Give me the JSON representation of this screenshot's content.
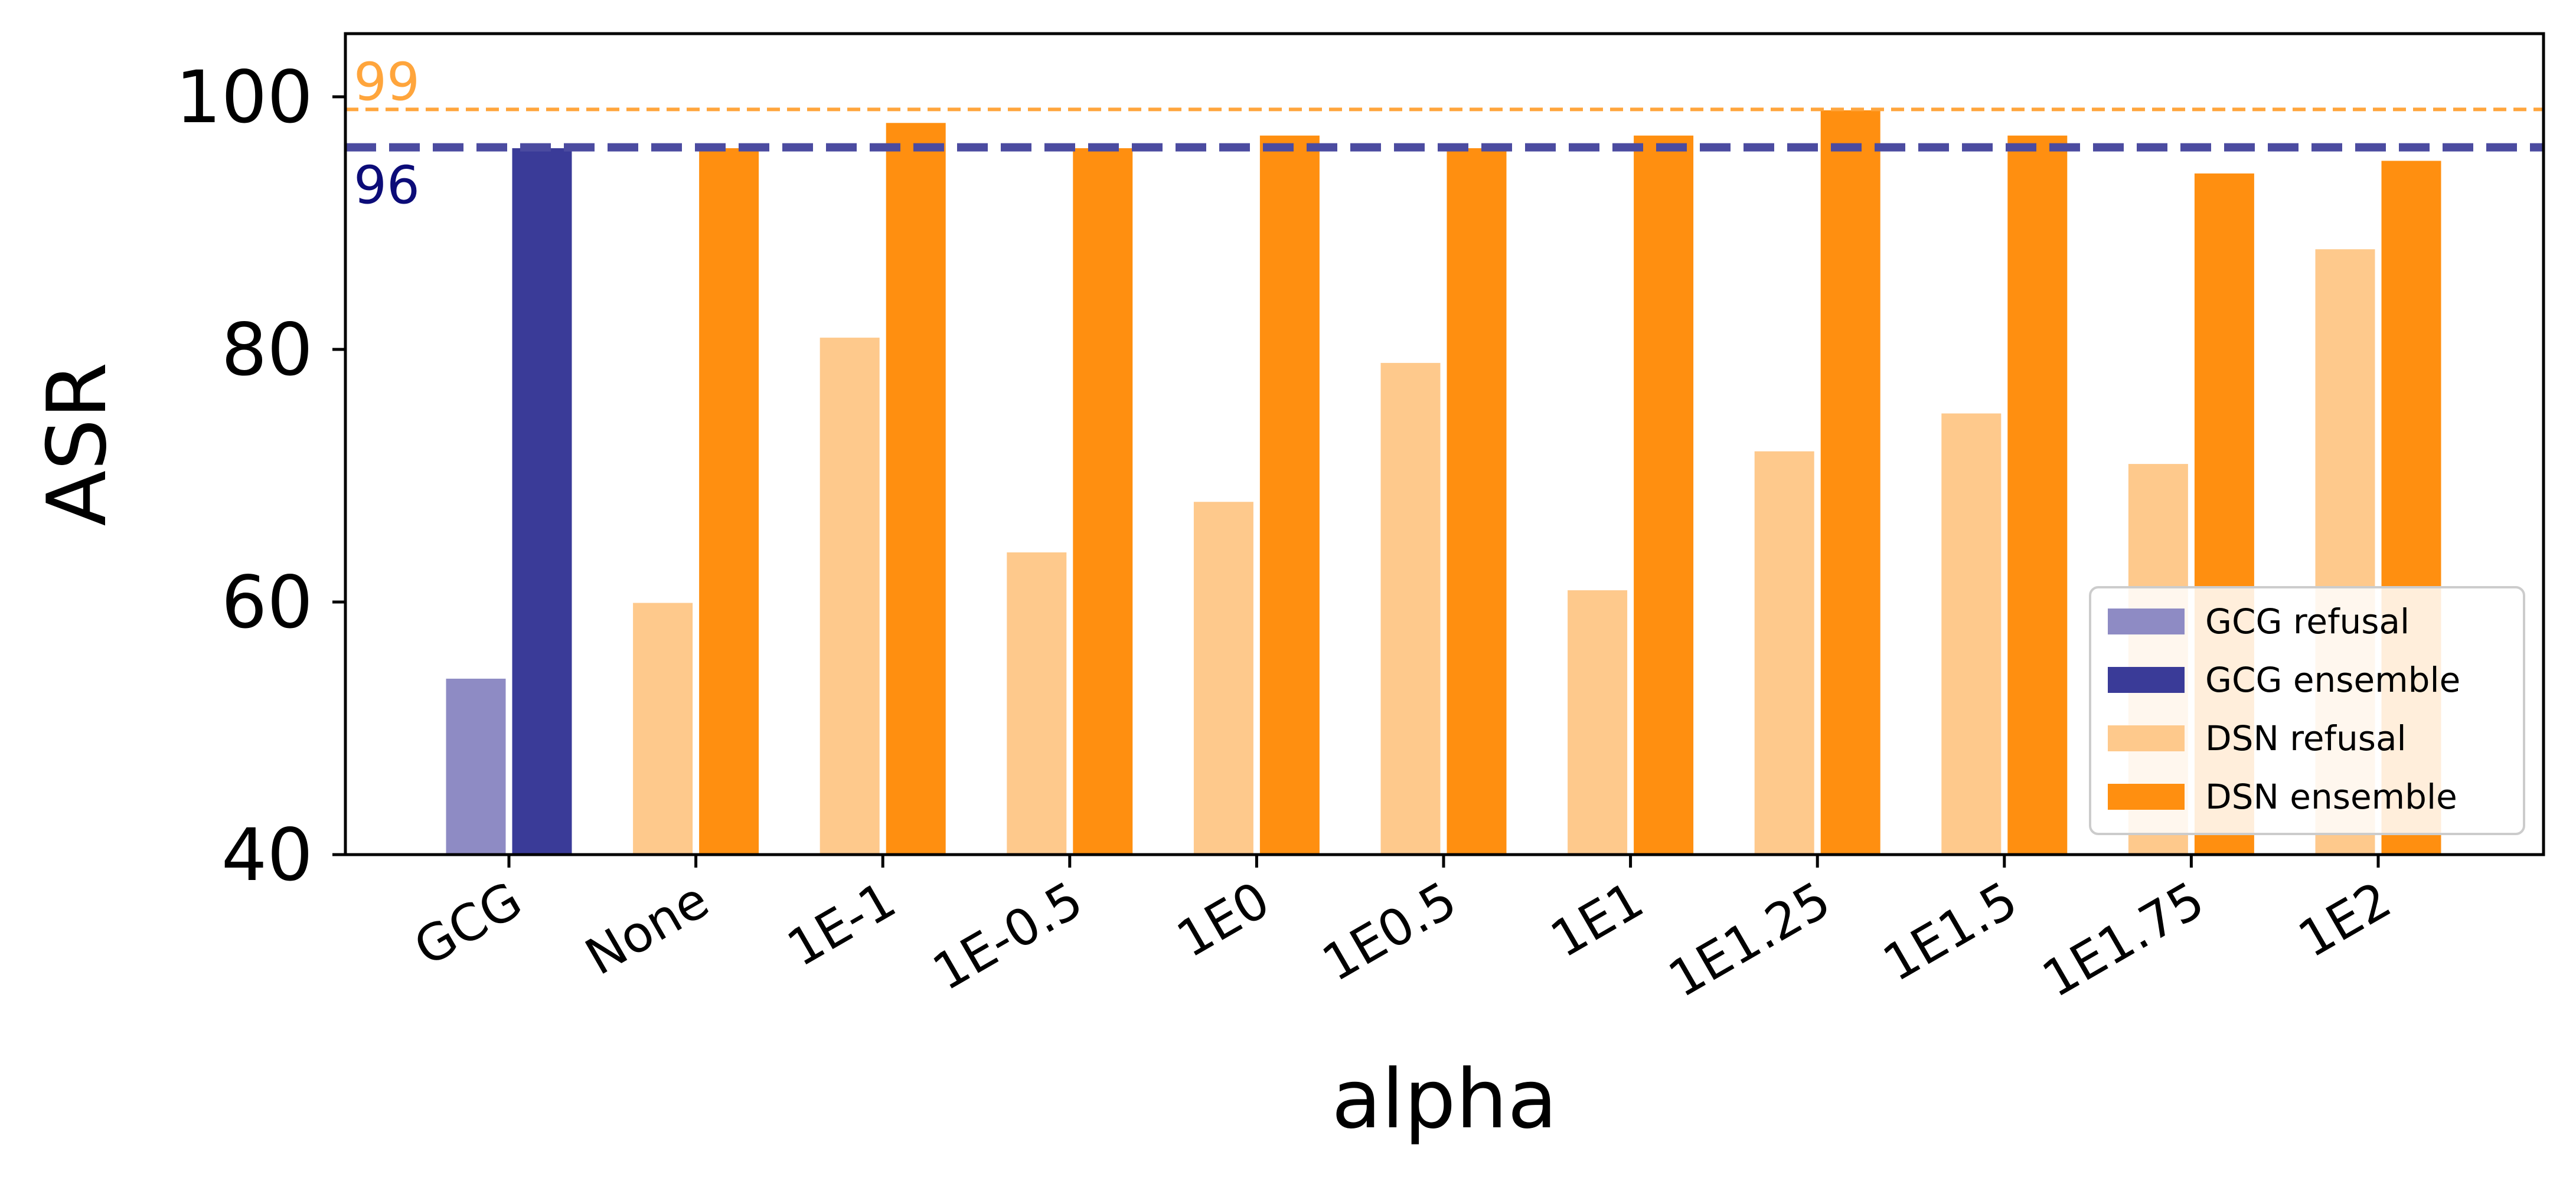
{
  "chart_data": {
    "type": "bar",
    "title": "",
    "xlabel": "alpha",
    "ylabel": "ASR",
    "ylim": [
      40,
      105
    ],
    "yticks": [
      40,
      60,
      80,
      100
    ],
    "grid": false,
    "legend_position": "bottom-right",
    "categories": [
      "GCG",
      "None",
      "1E-1",
      "1E-0.5",
      "1E0",
      "1E0.5",
      "1E1",
      "1E1.25",
      "1E1.5",
      "1E1.75",
      "1E2"
    ],
    "series": [
      {
        "name": "GCG refusal",
        "color": "#8e8bc4",
        "values": [
          54,
          null,
          null,
          null,
          null,
          null,
          null,
          null,
          null,
          null,
          null
        ]
      },
      {
        "name": "GCG ensemble",
        "color": "#3a3b98",
        "values": [
          96,
          null,
          null,
          null,
          null,
          null,
          null,
          null,
          null,
          null,
          null
        ]
      },
      {
        "name": "DSN refusal",
        "color": "#fec98c",
        "values": [
          null,
          60,
          81,
          64,
          68,
          79,
          61,
          72,
          75,
          71,
          88
        ]
      },
      {
        "name": "DSN ensemble",
        "color": "#ff8f10",
        "values": [
          null,
          96,
          98,
          96,
          97,
          96,
          97,
          99,
          97,
          94,
          95
        ]
      }
    ],
    "reference_lines": [
      {
        "value": 99,
        "label": "99",
        "color": "#ffa53c",
        "style": "dashed-thin"
      },
      {
        "value": 96,
        "label": "96",
        "color": "#4b4ba0",
        "label_color": "#0c0c78",
        "style": "dashed-thick"
      }
    ]
  }
}
